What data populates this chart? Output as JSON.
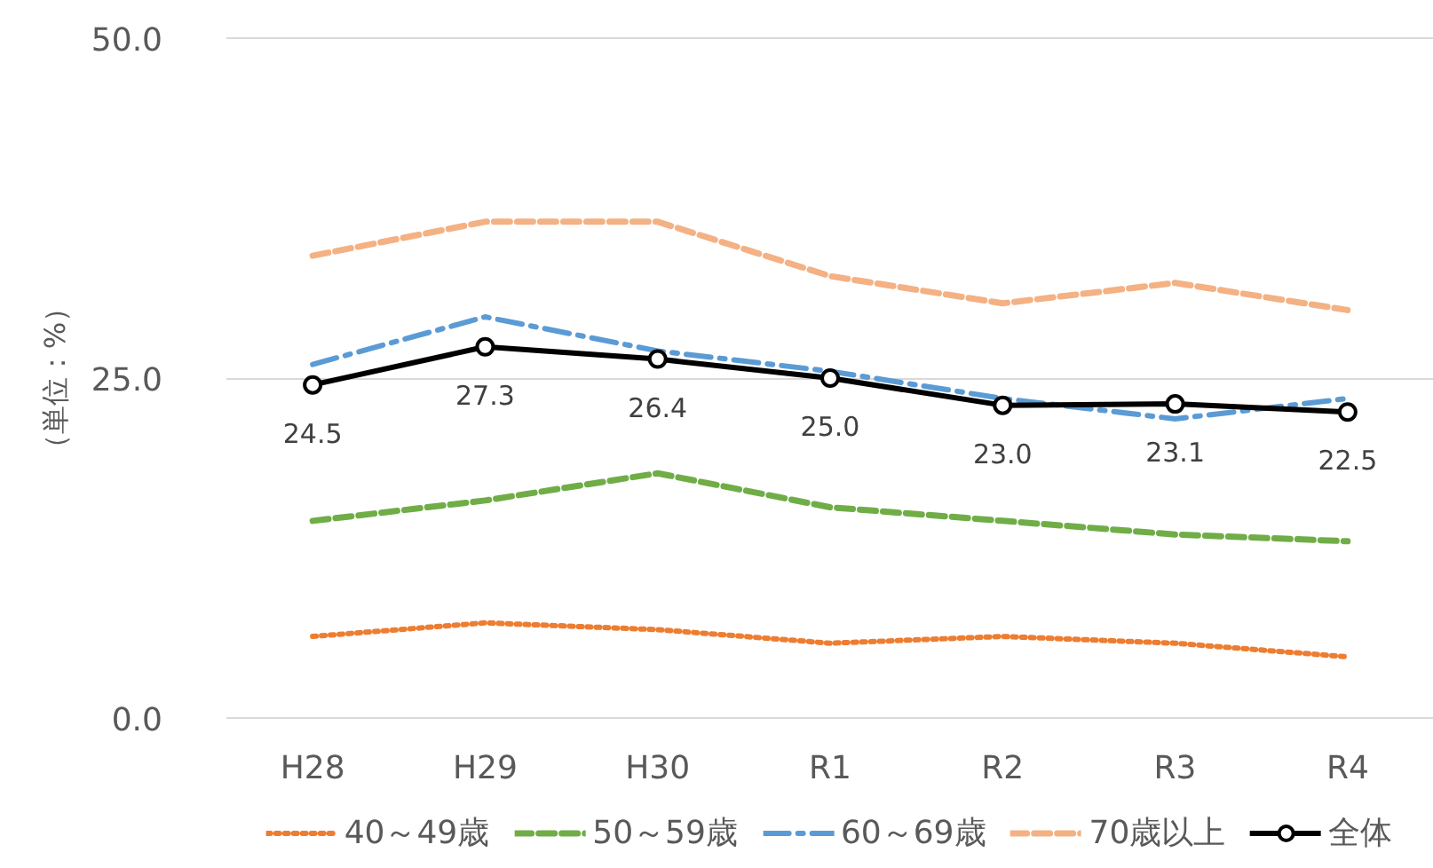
{
  "chart_data": {
    "type": "line",
    "ylabel": "（単位：%）",
    "categories": [
      "H28",
      "H29",
      "H30",
      "R1",
      "R2",
      "R3",
      "R4"
    ],
    "ylim": [
      0,
      50
    ],
    "yticks": [
      {
        "value": 0,
        "label": "0.0"
      },
      {
        "value": 25,
        "label": "25.0"
      },
      {
        "value": 50,
        "label": "50.0"
      }
    ],
    "grid": "y",
    "legend": "bottom",
    "series": [
      {
        "name": "40～49歳",
        "color": "#ed7d31",
        "line_style": "dotted",
        "values": [
          6.0,
          7.0,
          6.5,
          5.5,
          6.0,
          5.5,
          4.5
        ]
      },
      {
        "name": "50～59歳",
        "color": "#70ad47",
        "line_style": "dashed",
        "values": [
          14.5,
          16.0,
          18.0,
          15.5,
          14.5,
          13.5,
          13.0
        ]
      },
      {
        "name": "60～69歳",
        "color": "#5b9bd5",
        "line_style": "dashdot",
        "values": [
          26.0,
          29.5,
          27.0,
          25.5,
          23.5,
          22.0,
          23.5
        ]
      },
      {
        "name": "70歳以上",
        "color": "#f4b183",
        "line_style": "dashed",
        "values": [
          34.0,
          36.5,
          36.5,
          32.5,
          30.5,
          32.0,
          30.0
        ]
      },
      {
        "name": "全体",
        "color": "#000000",
        "line_style": "solid",
        "marker": "circle",
        "values": [
          24.5,
          27.3,
          26.4,
          25.0,
          23.0,
          23.1,
          22.5
        ],
        "value_labels": [
          "24.5",
          "27.3",
          "26.4",
          "25.0",
          "23.0",
          "23.1",
          "22.5"
        ]
      }
    ]
  }
}
